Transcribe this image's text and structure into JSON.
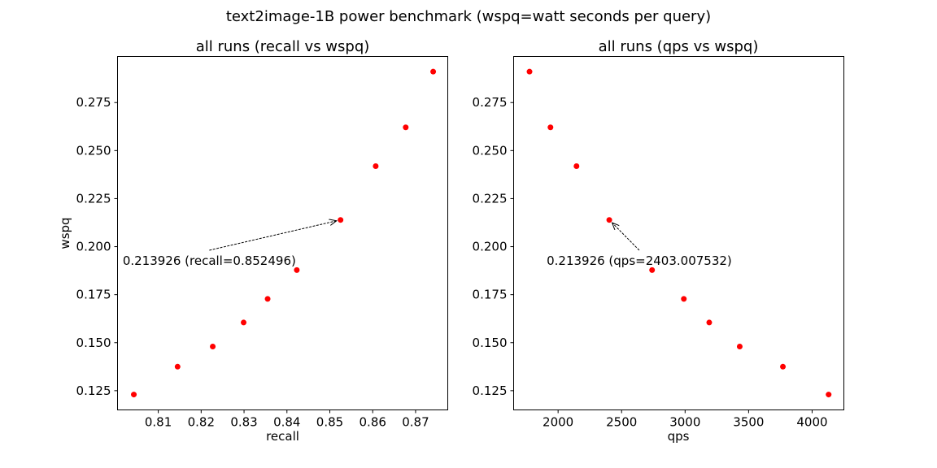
{
  "figure": {
    "title": "text2image-1B power benchmark (wspq=watt seconds per query)",
    "point_color": "#ff0000"
  },
  "chart_data": [
    {
      "type": "scatter",
      "title": "all runs (recall vs wspq)",
      "xlabel": "recall",
      "ylabel": "wspq",
      "xlim": [
        0.8005,
        0.8775
      ],
      "ylim": [
        0.115,
        0.299
      ],
      "xticks": [
        0.81,
        0.82,
        0.83,
        0.84,
        0.85,
        0.86,
        0.87
      ],
      "xtick_labels": [
        "0.81",
        "0.82",
        "0.83",
        "0.84",
        "0.85",
        "0.86",
        "0.87"
      ],
      "yticks": [
        0.125,
        0.15,
        0.175,
        0.2,
        0.225,
        0.25,
        0.275
      ],
      "ytick_labels": [
        "0.125",
        "0.150",
        "0.175",
        "0.200",
        "0.225",
        "0.250",
        "0.275"
      ],
      "x": [
        0.8043,
        0.8145,
        0.8227,
        0.8299,
        0.8355,
        0.8423,
        0.8525,
        0.8607,
        0.8677,
        0.8741
      ],
      "y": [
        0.123,
        0.1375,
        0.148,
        0.1605,
        0.1728,
        0.1878,
        0.2139,
        0.2419,
        0.2621,
        0.2911
      ],
      "annotation": {
        "text": "0.213926 (recall=0.852496)",
        "point": [
          0.852496,
          0.213926
        ],
        "text_pos": [
          0.8017,
          0.1905
        ]
      },
      "grid": false,
      "legend": "none"
    },
    {
      "type": "scatter",
      "title": "all runs (qps vs wspq)",
      "xlabel": "qps",
      "ylabel": "",
      "xlim": [
        1650,
        4250
      ],
      "ylim": [
        0.115,
        0.299
      ],
      "xticks": [
        2000,
        2500,
        3000,
        3500,
        4000
      ],
      "xtick_labels": [
        "2000",
        "2500",
        "3000",
        "3500",
        "4000"
      ],
      "yticks": [
        0.125,
        0.15,
        0.175,
        0.2,
        0.225,
        0.25,
        0.275
      ],
      "ytick_labels": [
        "0.125",
        "0.150",
        "0.175",
        "0.200",
        "0.225",
        "0.250",
        "0.275"
      ],
      "x": [
        4130,
        3770,
        3430,
        3190,
        2990,
        2740,
        2403,
        2145,
        1940,
        1775
      ],
      "y": [
        0.123,
        0.1375,
        0.148,
        0.1605,
        0.1728,
        0.1878,
        0.2139,
        0.2419,
        0.2621,
        0.2911
      ],
      "annotation": {
        "text": "0.213926 (qps=2403.007532)",
        "point": [
          2403.007532,
          0.213926
        ],
        "text_pos": [
          1910,
          0.1905
        ]
      },
      "grid": false,
      "legend": "none"
    }
  ]
}
